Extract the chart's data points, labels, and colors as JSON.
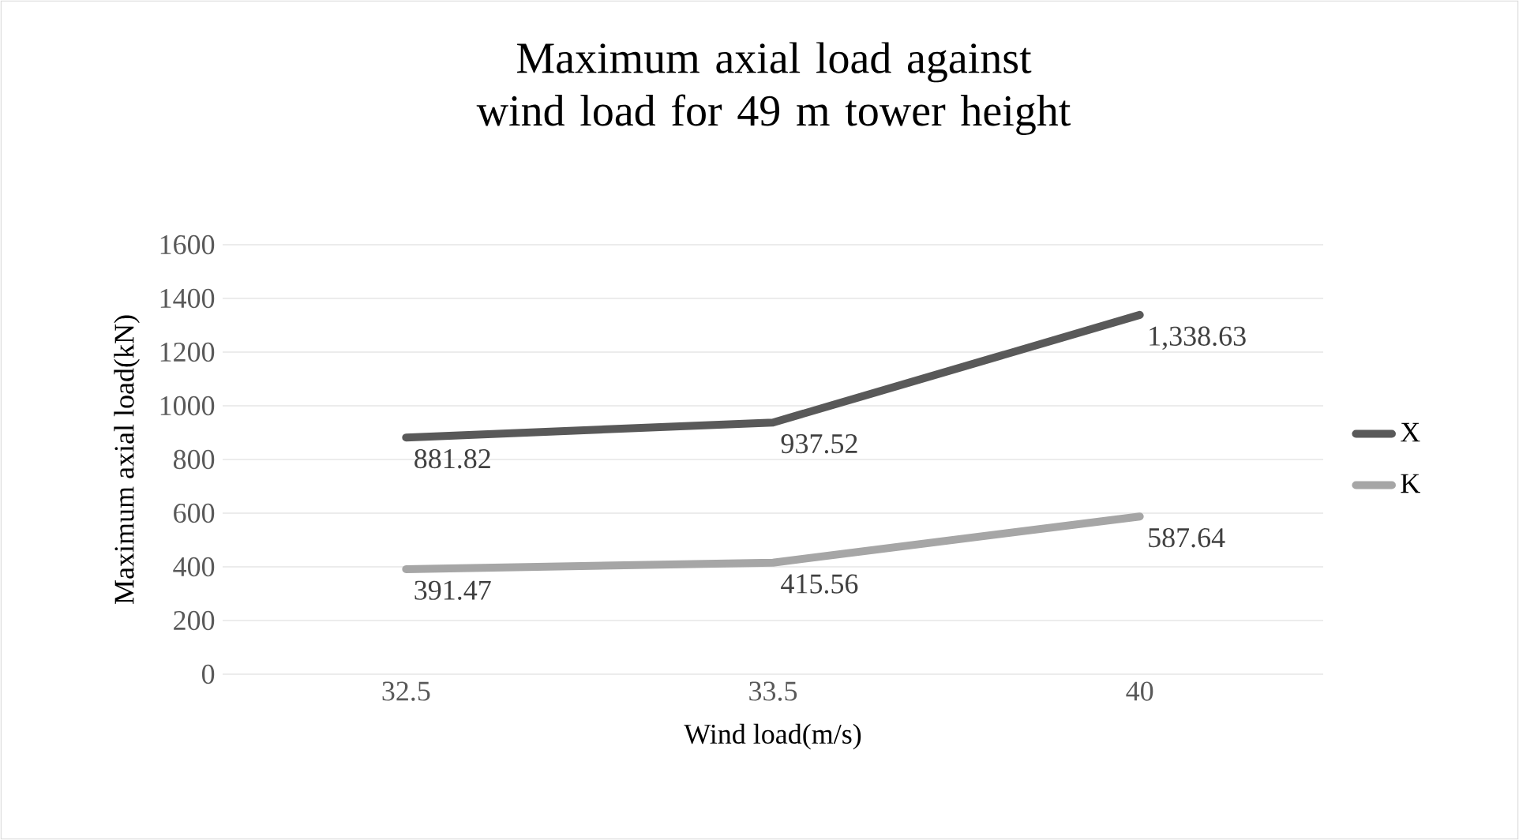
{
  "chart_data": {
    "type": "line",
    "title": "Maximum axial load against wind load for 49 m tower height",
    "xlabel": "Wind load(m/s)",
    "ylabel": "Maximum axial load(kN)",
    "categories": [
      "32.5",
      "33.5",
      "40"
    ],
    "series": [
      {
        "name": "X",
        "color": "#595959",
        "values": [
          881.82,
          937.52,
          1338.63
        ],
        "value_labels": [
          "881.82",
          "937.52",
          "1,338.63"
        ]
      },
      {
        "name": "K",
        "color": "#a6a6a6",
        "values": [
          391.47,
          415.56,
          587.64
        ],
        "value_labels": [
          "391.47",
          "415.56",
          "587.64"
        ]
      }
    ],
    "ylim": [
      0,
      1600
    ],
    "yticks": [
      0,
      200,
      400,
      600,
      800,
      1000,
      1200,
      1400,
      1600
    ],
    "grid": "y",
    "legend": "right",
    "marker": "none",
    "line_style": "solid"
  }
}
